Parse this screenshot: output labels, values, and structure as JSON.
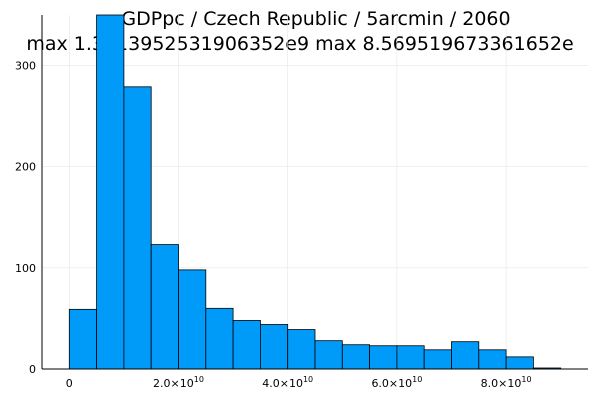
{
  "chart_data": {
    "type": "bar",
    "title": "GDPpc / Czech Republic / 5arcmin / 2060",
    "subtitle": "max 1.3313952531906352e9  max 8.569519673361652e",
    "xlabel": "",
    "ylabel": "",
    "bin_width": 5000000000,
    "bins": [
      {
        "x0": 0,
        "count": 59
      },
      {
        "x0": 5000000000,
        "count": 350
      },
      {
        "x0": 10000000000,
        "count": 279
      },
      {
        "x0": 15000000000,
        "count": 123
      },
      {
        "x0": 20000000000,
        "count": 98
      },
      {
        "x0": 25000000000,
        "count": 60
      },
      {
        "x0": 30000000000,
        "count": 48
      },
      {
        "x0": 35000000000,
        "count": 44
      },
      {
        "x0": 40000000000,
        "count": 39
      },
      {
        "x0": 45000000000,
        "count": 28
      },
      {
        "x0": 50000000000,
        "count": 24
      },
      {
        "x0": 55000000000,
        "count": 23
      },
      {
        "x0": 60000000000,
        "count": 23
      },
      {
        "x0": 65000000000,
        "count": 19
      },
      {
        "x0": 70000000000,
        "count": 27
      },
      {
        "x0": 75000000000,
        "count": 19
      },
      {
        "x0": 80000000000,
        "count": 12
      },
      {
        "x0": 85000000000,
        "count": 1
      }
    ],
    "xlim": [
      -5000000000,
      95000000000
    ],
    "ylim": [
      0,
      350
    ],
    "x_ticks": [
      {
        "value": 0,
        "mant": "0",
        "exp": ""
      },
      {
        "value": 20000000000,
        "mant": "2.0×10",
        "exp": "10"
      },
      {
        "value": 40000000000,
        "mant": "4.0×10",
        "exp": "10"
      },
      {
        "value": 60000000000,
        "mant": "6.0×10",
        "exp": "10"
      },
      {
        "value": 80000000000,
        "mant": "8.0×10",
        "exp": "10"
      }
    ],
    "y_ticks": [
      {
        "value": 0,
        "label": "0"
      },
      {
        "value": 100,
        "label": "100"
      },
      {
        "value": 200,
        "label": "200"
      },
      {
        "value": 300,
        "label": "300"
      }
    ],
    "grid": true,
    "legend": "none",
    "bar_color": "#009af9"
  }
}
